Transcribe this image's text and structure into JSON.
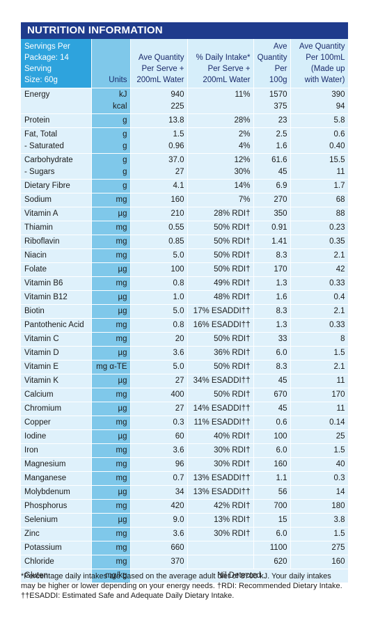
{
  "title": "NUTRITION INFORMATION",
  "header": {
    "servings_line1": "Servings Per",
    "servings_line2": "Package: 14",
    "serving_line1": "Serving",
    "serving_line2": "Size: 60g",
    "units": "Units",
    "ave_per_serve": [
      "Ave Quantity",
      "Per Serve +",
      "200mL Water"
    ],
    "daily_intake": [
      "% Daily Intake*",
      "Per Serve +",
      "200mL Water"
    ],
    "per_100g": [
      "Ave",
      "Quantity",
      "Per 100g"
    ],
    "per_100ml": [
      "Ave Quantity",
      "Per 100mL",
      "(Made up",
      "with Water)"
    ]
  },
  "rows": [
    {
      "name": [
        "Energy",
        ""
      ],
      "unit": [
        "kJ",
        "kcal"
      ],
      "serve": [
        "940",
        "225"
      ],
      "di": [
        "11%",
        ""
      ],
      "g100": [
        "1570",
        "375"
      ],
      "ml100": [
        "390",
        "94"
      ]
    },
    {
      "name": [
        "Protein"
      ],
      "unit": [
        "g"
      ],
      "serve": [
        "13.8"
      ],
      "di": [
        "28%"
      ],
      "g100": [
        "23"
      ],
      "ml100": [
        "5.8"
      ]
    },
    {
      "name": [
        "Fat, Total",
        " - Saturated"
      ],
      "unit": [
        "g",
        "g"
      ],
      "serve": [
        "1.5",
        "0.96"
      ],
      "di": [
        "2%",
        "4%"
      ],
      "g100": [
        "2.5",
        "1.6"
      ],
      "ml100": [
        "0.6",
        "0.40"
      ]
    },
    {
      "name": [
        "Carbohydrate",
        " - Sugars"
      ],
      "unit": [
        "g",
        "g"
      ],
      "serve": [
        "37.0",
        "27"
      ],
      "di": [
        "12%",
        "30%"
      ],
      "g100": [
        "61.6",
        "45"
      ],
      "ml100": [
        "15.5",
        "11"
      ]
    },
    {
      "name": [
        "Dietary Fibre"
      ],
      "unit": [
        "g"
      ],
      "serve": [
        "4.1"
      ],
      "di": [
        "14%"
      ],
      "g100": [
        "6.9"
      ],
      "ml100": [
        "1.7"
      ]
    },
    {
      "name": [
        "Sodium"
      ],
      "unit": [
        "mg"
      ],
      "serve": [
        "160"
      ],
      "di": [
        "7%"
      ],
      "g100": [
        "270"
      ],
      "ml100": [
        "68"
      ]
    },
    {
      "name": [
        "Vitamin A"
      ],
      "unit": [
        "µg"
      ],
      "serve": [
        "210"
      ],
      "di": [
        "28% RDI†"
      ],
      "g100": [
        "350"
      ],
      "ml100": [
        "88"
      ]
    },
    {
      "name": [
        "Thiamin"
      ],
      "unit": [
        "mg"
      ],
      "serve": [
        "0.55"
      ],
      "di": [
        "50% RDI†"
      ],
      "g100": [
        "0.91"
      ],
      "ml100": [
        "0.23"
      ]
    },
    {
      "name": [
        "Riboflavin"
      ],
      "unit": [
        "mg"
      ],
      "serve": [
        "0.85"
      ],
      "di": [
        "50% RDI†"
      ],
      "g100": [
        "1.41"
      ],
      "ml100": [
        "0.35"
      ]
    },
    {
      "name": [
        "Niacin"
      ],
      "unit": [
        "mg"
      ],
      "serve": [
        "5.0"
      ],
      "di": [
        "50% RDI†"
      ],
      "g100": [
        "8.3"
      ],
      "ml100": [
        "2.1"
      ]
    },
    {
      "name": [
        "Folate"
      ],
      "unit": [
        "µg"
      ],
      "serve": [
        "100"
      ],
      "di": [
        "50% RDI†"
      ],
      "g100": [
        "170"
      ],
      "ml100": [
        "42"
      ]
    },
    {
      "name": [
        "Vitamin B6"
      ],
      "unit": [
        "mg"
      ],
      "serve": [
        "0.8"
      ],
      "di": [
        "49% RDI†"
      ],
      "g100": [
        "1.3"
      ],
      "ml100": [
        "0.33"
      ]
    },
    {
      "name": [
        "Vitamin B12"
      ],
      "unit": [
        "µg"
      ],
      "serve": [
        "1.0"
      ],
      "di": [
        "48% RDI†"
      ],
      "g100": [
        "1.6"
      ],
      "ml100": [
        "0.4"
      ]
    },
    {
      "name": [
        "Biotin"
      ],
      "unit": [
        "µg"
      ],
      "serve": [
        "5.0"
      ],
      "di": [
        "17% ESADDI††"
      ],
      "g100": [
        "8.3"
      ],
      "ml100": [
        "2.1"
      ]
    },
    {
      "name": [
        "Pantothenic Acid"
      ],
      "unit": [
        "mg"
      ],
      "serve": [
        "0.8"
      ],
      "di": [
        "16% ESADDI††"
      ],
      "g100": [
        "1.3"
      ],
      "ml100": [
        "0.33"
      ]
    },
    {
      "name": [
        "Vitamin C"
      ],
      "unit": [
        "mg"
      ],
      "serve": [
        "20"
      ],
      "di": [
        "50% RDI†"
      ],
      "g100": [
        "33"
      ],
      "ml100": [
        "8"
      ]
    },
    {
      "name": [
        "Vitamin D"
      ],
      "unit": [
        "µg"
      ],
      "serve": [
        "3.6"
      ],
      "di": [
        "36% RDI†"
      ],
      "g100": [
        "6.0"
      ],
      "ml100": [
        "1.5"
      ]
    },
    {
      "name": [
        "Vitamin E"
      ],
      "unit": [
        "mg α-TE"
      ],
      "serve": [
        "5.0"
      ],
      "di": [
        "50% RDI†"
      ],
      "g100": [
        "8.3"
      ],
      "ml100": [
        "2.1"
      ]
    },
    {
      "name": [
        "Vitamin K"
      ],
      "unit": [
        "µg"
      ],
      "serve": [
        "27"
      ],
      "di": [
        "34% ESADDI††"
      ],
      "g100": [
        "45"
      ],
      "ml100": [
        "11"
      ]
    },
    {
      "name": [
        "Calcium"
      ],
      "unit": [
        "mg"
      ],
      "serve": [
        "400"
      ],
      "di": [
        "50% RDI†"
      ],
      "g100": [
        "670"
      ],
      "ml100": [
        "170"
      ]
    },
    {
      "name": [
        "Chromium"
      ],
      "unit": [
        "µg"
      ],
      "serve": [
        "27"
      ],
      "di": [
        "14% ESADDI††"
      ],
      "g100": [
        "45"
      ],
      "ml100": [
        "11"
      ]
    },
    {
      "name": [
        "Copper"
      ],
      "unit": [
        "mg"
      ],
      "serve": [
        "0.3"
      ],
      "di": [
        "11% ESADDI††"
      ],
      "g100": [
        "0.6"
      ],
      "ml100": [
        "0.14"
      ]
    },
    {
      "name": [
        "Iodine"
      ],
      "unit": [
        "µg"
      ],
      "serve": [
        "60"
      ],
      "di": [
        "40% RDI†"
      ],
      "g100": [
        "100"
      ],
      "ml100": [
        "25"
      ]
    },
    {
      "name": [
        "Iron"
      ],
      "unit": [
        "mg"
      ],
      "serve": [
        "3.6"
      ],
      "di": [
        "30% RDI†"
      ],
      "g100": [
        "6.0"
      ],
      "ml100": [
        "1.5"
      ]
    },
    {
      "name": [
        "Magnesium"
      ],
      "unit": [
        "mg"
      ],
      "serve": [
        "96"
      ],
      "di": [
        "30% RDI†"
      ],
      "g100": [
        "160"
      ],
      "ml100": [
        "40"
      ]
    },
    {
      "name": [
        "Manganese"
      ],
      "unit": [
        "mg"
      ],
      "serve": [
        "0.7"
      ],
      "di": [
        "13% ESADDI††"
      ],
      "g100": [
        "1.1"
      ],
      "ml100": [
        "0.3"
      ]
    },
    {
      "name": [
        "Molybdenum"
      ],
      "unit": [
        "µg"
      ],
      "serve": [
        "34"
      ],
      "di": [
        "13% ESADDI††"
      ],
      "g100": [
        "56"
      ],
      "ml100": [
        "14"
      ]
    },
    {
      "name": [
        "Phosphorus"
      ],
      "unit": [
        "mg"
      ],
      "serve": [
        "420"
      ],
      "di": [
        "42% RDI†"
      ],
      "g100": [
        "700"
      ],
      "ml100": [
        "180"
      ]
    },
    {
      "name": [
        "Selenium"
      ],
      "unit": [
        "µg"
      ],
      "serve": [
        "9.0"
      ],
      "di": [
        "13% RDI†"
      ],
      "g100": [
        "15"
      ],
      "ml100": [
        "3.8"
      ]
    },
    {
      "name": [
        "Zinc"
      ],
      "unit": [
        "mg"
      ],
      "serve": [
        "3.6"
      ],
      "di": [
        "30% RDI†"
      ],
      "g100": [
        "6.0"
      ],
      "ml100": [
        "1.5"
      ]
    },
    {
      "name": [
        "Potassium"
      ],
      "unit": [
        "mg"
      ],
      "serve": [
        "660"
      ],
      "di": [
        ""
      ],
      "g100": [
        "1100"
      ],
      "ml100": [
        "275"
      ]
    },
    {
      "name": [
        "Chloride"
      ],
      "unit": [
        "mg"
      ],
      "serve": [
        "370"
      ],
      "di": [
        ""
      ],
      "g100": [
        "620"
      ],
      "ml100": [
        "160"
      ]
    }
  ],
  "gluten": {
    "name": "Gluten",
    "unit": "mg/kg",
    "value": "Nil Detected"
  },
  "footnote": [
    "*Percentage daily intakes are based on the average adult diet of 8700 kJ. Your daily intakes",
    "may be higher or lower depending on your energy needs. †RDI: Recommended Dietary Intake.",
    "††ESADDI: Estimated Safe and Adequate Daily Dietary Intake."
  ],
  "colors": {
    "title_bar": "#1f3b8c",
    "header_accent": "#2ea3dd",
    "units_column": "#7fc8ea",
    "cell_bg": "#dff1fb"
  }
}
